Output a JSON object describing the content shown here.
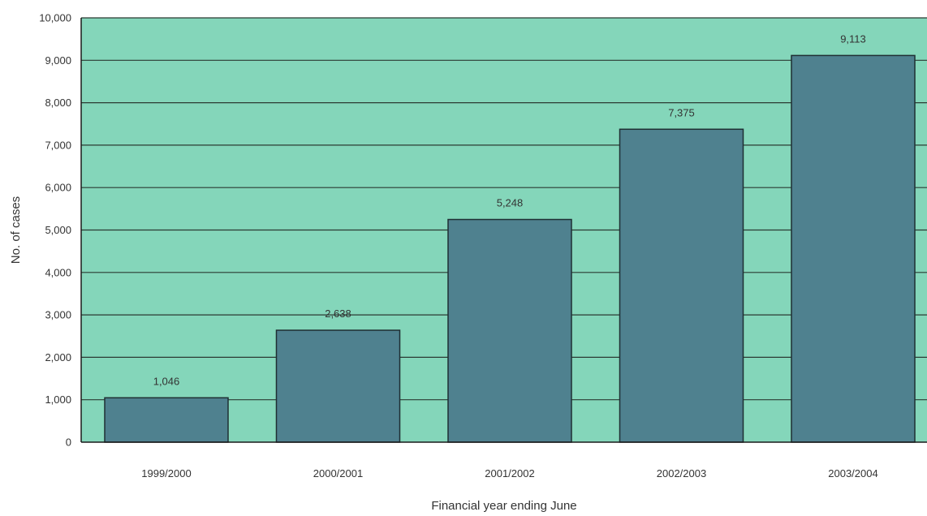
{
  "chart_data": {
    "type": "bar",
    "categories": [
      "1999/2000",
      "2000/2001",
      "2001/2002",
      "2002/2003",
      "2003/2004"
    ],
    "values": [
      1046,
      2638,
      5248,
      7375,
      9113
    ],
    "value_labels": [
      "1,046",
      "2,638",
      "5,248",
      "7,375",
      "9,113"
    ],
    "title": "",
    "xlabel": "Financial year ending June",
    "ylabel": "No. of cases",
    "ylim": [
      0,
      10000
    ],
    "yticks": [
      0,
      1000,
      2000,
      3000,
      4000,
      5000,
      6000,
      7000,
      8000,
      9000,
      10000
    ],
    "ytick_labels": [
      "0",
      "1,000",
      "2,000",
      "3,000",
      "4,000",
      "5,000",
      "6,000",
      "7,000",
      "8,000",
      "9,000",
      "10,000"
    ],
    "grid": true,
    "legend": "none",
    "colors": {
      "plot_background": "#84d6ba",
      "bar_fill": "#4f818f",
      "bar_stroke": "#1f2f33",
      "gridline": "#2b3a33",
      "axis": "#1a1a1a"
    }
  }
}
